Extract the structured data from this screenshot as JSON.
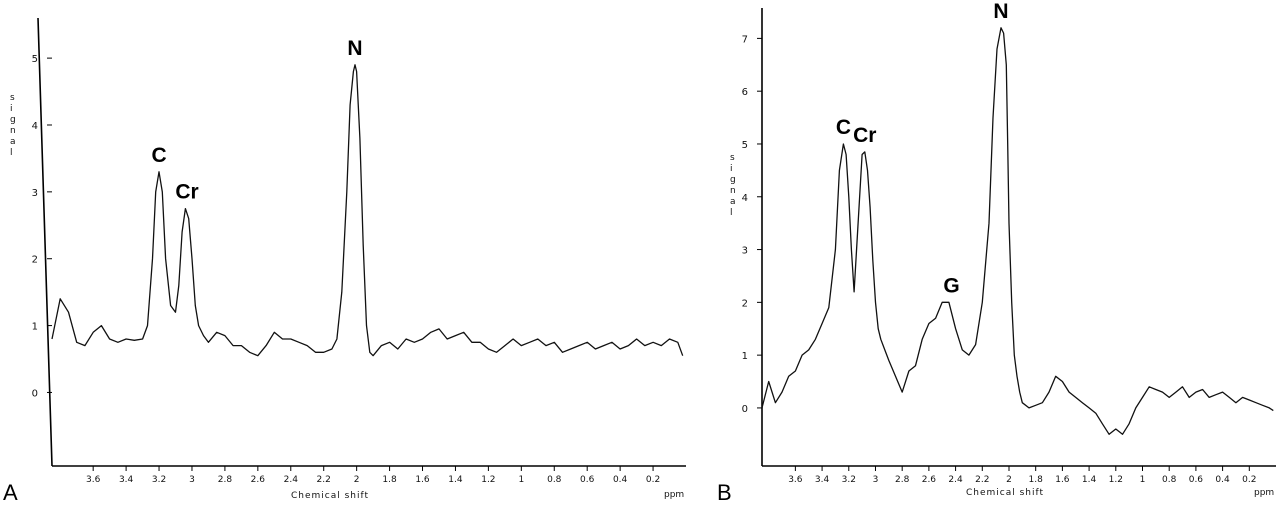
{
  "chart_data": [
    {
      "type": "line",
      "panel": "A",
      "title": "",
      "xlabel": "Chemical shift",
      "ylabel": "Signal",
      "xunit": "ppm",
      "xlim": [
        3.85,
        0.0
      ],
      "ylim": [
        -1.1,
        5.6
      ],
      "x_reversed": true,
      "grid": false,
      "xticks": [
        "3.6",
        "3.4",
        "3.2",
        "3",
        "2.8",
        "2.6",
        "2.4",
        "2.2",
        "2",
        "1.8",
        "1.6",
        "1.4",
        "1.2",
        "1",
        "0.8",
        "0.6",
        "0.4",
        "0.2"
      ],
      "yticks": [
        "0",
        "1",
        "2",
        "3",
        "4",
        "5"
      ],
      "series": [
        {
          "x": [
            3.85,
            3.8,
            3.75,
            3.7,
            3.65,
            3.6,
            3.55,
            3.5,
            3.45,
            3.4,
            3.35,
            3.3,
            3.27,
            3.24,
            3.22,
            3.2,
            3.18,
            3.16,
            3.13,
            3.1,
            3.08,
            3.06,
            3.04,
            3.02,
            3.0,
            2.98,
            2.96,
            2.93,
            2.9,
            2.85,
            2.8,
            2.75,
            2.7,
            2.65,
            2.6,
            2.55,
            2.5,
            2.45,
            2.4,
            2.35,
            2.3,
            2.25,
            2.2,
            2.15,
            2.12,
            2.09,
            2.06,
            2.04,
            2.02,
            2.01,
            2.0,
            1.98,
            1.96,
            1.94,
            1.92,
            1.9,
            1.85,
            1.8,
            1.75,
            1.7,
            1.65,
            1.6,
            1.55,
            1.5,
            1.45,
            1.4,
            1.35,
            1.3,
            1.25,
            1.2,
            1.15,
            1.1,
            1.05,
            1.0,
            0.95,
            0.9,
            0.85,
            0.8,
            0.75,
            0.7,
            0.65,
            0.6,
            0.55,
            0.5,
            0.45,
            0.4,
            0.35,
            0.3,
            0.25,
            0.2,
            0.15,
            0.1,
            0.05,
            0.02
          ],
          "y": [
            0.8,
            1.4,
            1.2,
            0.75,
            0.7,
            0.9,
            1.0,
            0.8,
            0.75,
            0.8,
            0.78,
            0.8,
            1.0,
            2.0,
            3.0,
            3.3,
            3.0,
            2.0,
            1.3,
            1.2,
            1.6,
            2.4,
            2.75,
            2.6,
            2.0,
            1.3,
            1.0,
            0.85,
            0.75,
            0.9,
            0.85,
            0.7,
            0.7,
            0.6,
            0.55,
            0.7,
            0.9,
            0.8,
            0.8,
            0.75,
            0.7,
            0.6,
            0.6,
            0.65,
            0.8,
            1.5,
            3.0,
            4.3,
            4.8,
            4.9,
            4.8,
            3.8,
            2.2,
            1.0,
            0.6,
            0.55,
            0.7,
            0.75,
            0.65,
            0.8,
            0.75,
            0.8,
            0.9,
            0.95,
            0.8,
            0.85,
            0.9,
            0.75,
            0.75,
            0.65,
            0.6,
            0.7,
            0.8,
            0.7,
            0.75,
            0.8,
            0.7,
            0.75,
            0.6,
            0.65,
            0.7,
            0.75,
            0.65,
            0.7,
            0.75,
            0.65,
            0.7,
            0.8,
            0.7,
            0.75,
            0.7,
            0.8,
            0.75,
            0.55
          ]
        }
      ],
      "annotations": [
        {
          "text": "C",
          "x": 3.2,
          "y": 3.3
        },
        {
          "text": "Cr",
          "x": 3.03,
          "y": 2.75
        },
        {
          "text": "N",
          "x": 2.01,
          "y": 4.9
        }
      ],
      "panel_label": "A"
    },
    {
      "type": "line",
      "panel": "B",
      "title": "",
      "xlabel": "Chemical shift",
      "ylabel": "Signal",
      "xunit": "ppm",
      "xlim": [
        3.85,
        0.0
      ],
      "ylim": [
        -1.1,
        7.5
      ],
      "x_reversed": true,
      "grid": false,
      "xticks": [
        "3.6",
        "3.4",
        "3.2",
        "3",
        "2.8",
        "2.6",
        "2.4",
        "2.2",
        "2",
        "1.8",
        "1.6",
        "1.4",
        "1.2",
        "1",
        "0.8",
        "0.6",
        "0.4",
        "0.2"
      ],
      "yticks": [
        "0",
        "1",
        "2",
        "3",
        "4",
        "5",
        "6",
        "7"
      ],
      "series": [
        {
          "x": [
            3.85,
            3.8,
            3.75,
            3.7,
            3.65,
            3.6,
            3.55,
            3.5,
            3.45,
            3.4,
            3.35,
            3.3,
            3.27,
            3.24,
            3.22,
            3.2,
            3.18,
            3.16,
            3.13,
            3.1,
            3.08,
            3.06,
            3.04,
            3.02,
            3.0,
            2.98,
            2.96,
            2.93,
            2.9,
            2.85,
            2.8,
            2.75,
            2.7,
            2.65,
            2.6,
            2.55,
            2.5,
            2.45,
            2.4,
            2.35,
            2.3,
            2.25,
            2.2,
            2.15,
            2.12,
            2.09,
            2.06,
            2.04,
            2.02,
            2.01,
            2.0,
            1.98,
            1.96,
            1.94,
            1.92,
            1.9,
            1.85,
            1.8,
            1.75,
            1.7,
            1.65,
            1.6,
            1.55,
            1.5,
            1.45,
            1.4,
            1.35,
            1.3,
            1.25,
            1.2,
            1.15,
            1.1,
            1.05,
            1.0,
            0.95,
            0.9,
            0.85,
            0.8,
            0.75,
            0.7,
            0.65,
            0.6,
            0.55,
            0.5,
            0.45,
            0.4,
            0.35,
            0.3,
            0.25,
            0.2,
            0.15,
            0.1,
            0.05,
            0.02
          ],
          "y": [
            0.0,
            0.5,
            0.1,
            0.3,
            0.6,
            0.7,
            1.0,
            1.1,
            1.3,
            1.6,
            1.9,
            3.0,
            4.5,
            5.0,
            4.8,
            4.0,
            3.0,
            2.2,
            3.5,
            4.8,
            4.85,
            4.5,
            3.8,
            2.8,
            2.0,
            1.5,
            1.3,
            1.1,
            0.9,
            0.6,
            0.3,
            0.7,
            0.8,
            1.3,
            1.6,
            1.7,
            2.0,
            2.0,
            1.5,
            1.1,
            1.0,
            1.2,
            2.0,
            3.5,
            5.5,
            6.8,
            7.2,
            7.1,
            6.5,
            5.0,
            3.5,
            2.0,
            1.0,
            0.6,
            0.3,
            0.1,
            0.0,
            0.05,
            0.1,
            0.3,
            0.6,
            0.5,
            0.3,
            0.2,
            0.1,
            0.0,
            -0.1,
            -0.3,
            -0.5,
            -0.4,
            -0.5,
            -0.3,
            0.0,
            0.2,
            0.4,
            0.35,
            0.3,
            0.2,
            0.3,
            0.4,
            0.2,
            0.3,
            0.35,
            0.2,
            0.25,
            0.3,
            0.2,
            0.1,
            0.2,
            0.15,
            0.1,
            0.05,
            0.0,
            -0.05
          ]
        }
      ],
      "annotations": [
        {
          "text": "C",
          "x": 3.24,
          "y": 5.0
        },
        {
          "text": "Cr",
          "x": 3.08,
          "y": 4.85
        },
        {
          "text": "G",
          "x": 2.43,
          "y": 2.0
        },
        {
          "text": "N",
          "x": 2.06,
          "y": 7.2
        }
      ],
      "panel_label": "B"
    }
  ]
}
